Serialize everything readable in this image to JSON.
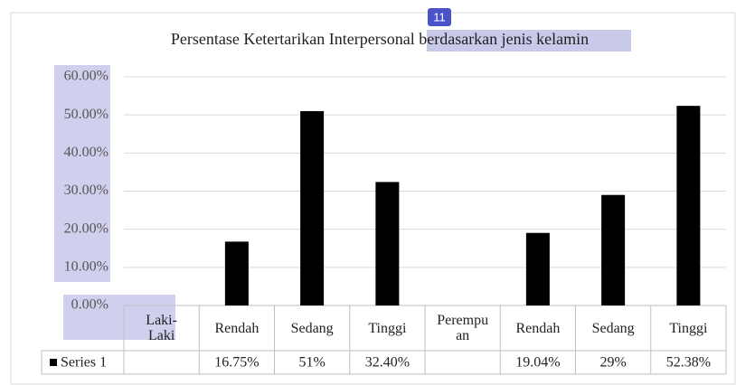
{
  "chart_data": {
    "type": "bar",
    "title": "Persentase Ketertarikan Interpersonal berdasarkan jenis kelamin",
    "badge": "11",
    "categories": [
      "Laki-Laki",
      "Rendah",
      "Sedang",
      "Tinggi",
      "Perempuan",
      "Rendah",
      "Sedang",
      "Tinggi"
    ],
    "series": [
      {
        "name": "Series 1",
        "color": "#000000",
        "values": [
          null,
          16.75,
          51,
          32.4,
          null,
          19.04,
          29,
          52.38
        ],
        "value_labels": [
          null,
          "16.75%",
          "51%",
          "32.40%",
          null,
          "19.04%",
          "29%",
          "52.38%"
        ]
      }
    ],
    "ylim": [
      0,
      60
    ],
    "yticks": [
      {
        "value": 0,
        "label": "0.00%"
      },
      {
        "value": 10,
        "label": "10.00%"
      },
      {
        "value": 20,
        "label": "20.00%"
      },
      {
        "value": 30,
        "label": "30.00%"
      },
      {
        "value": 40,
        "label": "40.00%"
      },
      {
        "value": 50,
        "label": "50.00%"
      },
      {
        "value": 60,
        "label": "60.00%"
      }
    ],
    "grid": true,
    "legend": "data-table"
  }
}
